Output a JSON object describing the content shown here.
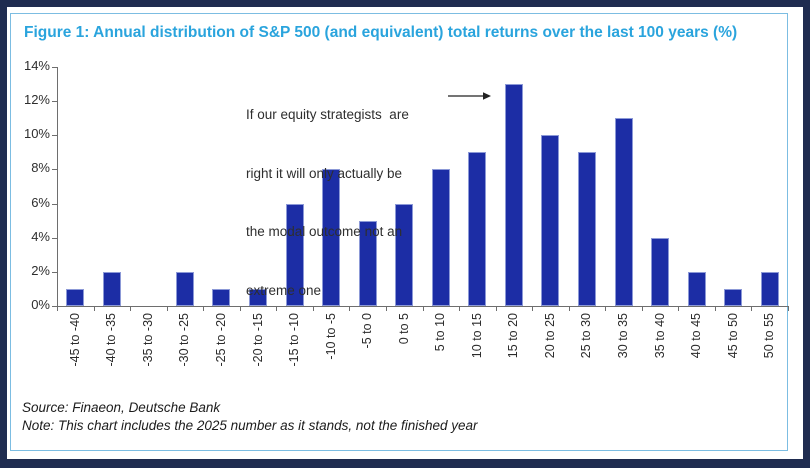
{
  "header": {
    "title": "Figure 1: Annual distribution of S&P 500 (and equivalent) total returns over the last 100 years (%)"
  },
  "footer": {
    "source": "Source: Finaeon, Deutsche Bank",
    "note": "Note: This chart includes the 2025 number as it stands, not the finished year"
  },
  "colors": {
    "bar": "#1c2da5",
    "bar_edge": "rgba(178,190,232,0.75)",
    "title": "#2aa4dd",
    "outer_border": "#1f2c50",
    "frame": "#7cbde2",
    "axis": "#6e6e6e",
    "text": "#2e2e2e"
  },
  "chart_data": {
    "type": "bar",
    "title": "Figure 1: Annual distribution of S&P 500 (and equivalent) total returns over the last 100 years (%)",
    "categories": [
      "-45 to -40",
      "-40 to -35",
      "-35 to -30",
      "-30 to -25",
      "-25 to -20",
      "-20 to -15",
      "-15 to -10",
      "-10 to -5",
      "-5 to 0",
      "0 to 5",
      "5 to 10",
      "10 to 15",
      "15 to 20",
      "20 to 25",
      "25 to 30",
      "30 to 35",
      "35 to 40",
      "40 to 45",
      "45 to 50",
      "50 to 55"
    ],
    "values": [
      1,
      2,
      0,
      2,
      1,
      1,
      6,
      8,
      5,
      6,
      8,
      9,
      13,
      10,
      9,
      11,
      4,
      2,
      1,
      2
    ],
    "xlabel": "",
    "ylabel": "",
    "ylim": [
      0,
      14
    ],
    "ytick_step": 2,
    "ytick_suffix": "%",
    "grid": false,
    "legend": "none",
    "bar_color": "#1c2da5",
    "annotation": {
      "lines": [
        "If our equity strategists  are",
        "right it will only actually be",
        "the modal outcome not an",
        "extreme one"
      ],
      "full_text": "If our equity strategists are right it will only actually be the modal outcome not an extreme one",
      "target_category": "15 to 20"
    }
  }
}
